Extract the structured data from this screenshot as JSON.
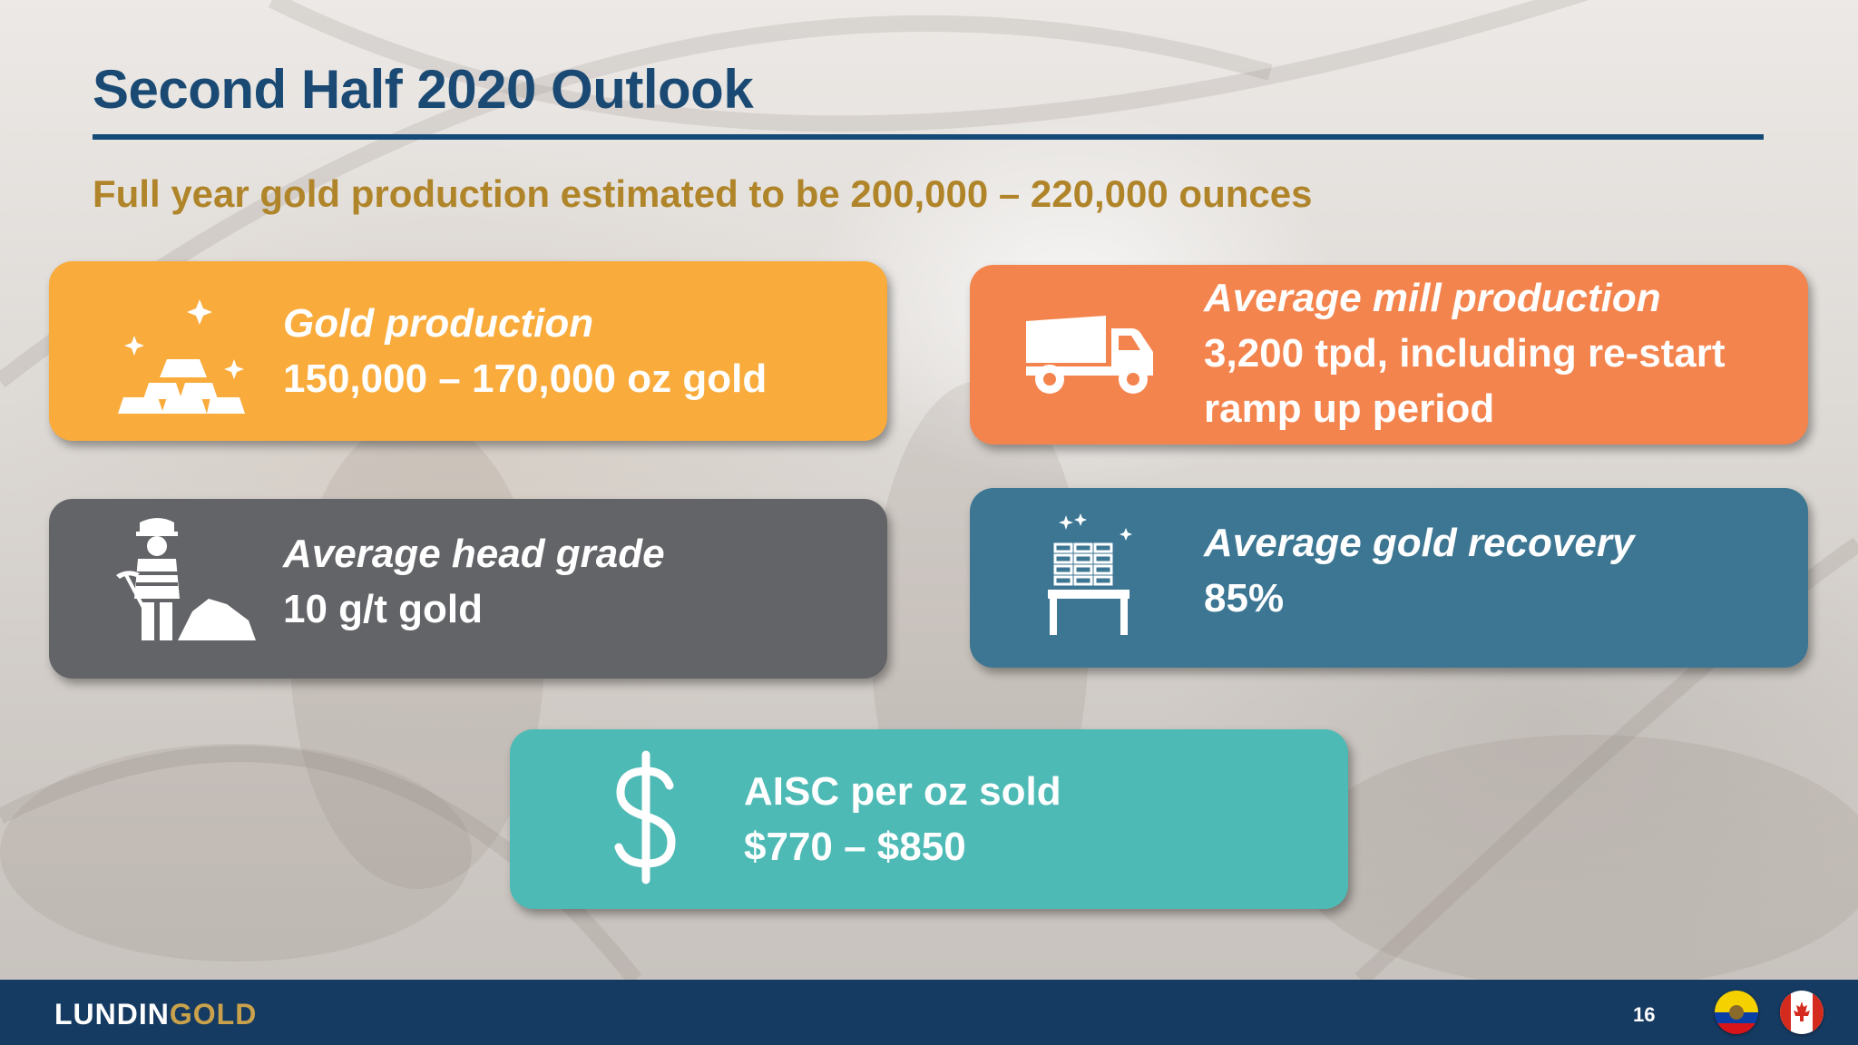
{
  "slide": {
    "title": "Second Half 2020 Outlook",
    "subtitle": "Full year gold production estimated to be 200,000 – 220,000 ounces",
    "page_number": "16"
  },
  "cards": {
    "gold": {
      "label": "Gold production",
      "value": "150,000 – 170,000 oz gold",
      "icon": "gold-bars-icon",
      "color": "#f9ab3c"
    },
    "mill": {
      "label": "Average mill production",
      "value_line1": "3,200 tpd, including re-start",
      "value_line2": "ramp up period",
      "icon": "dump-truck-icon",
      "color": "#f4844e"
    },
    "grade": {
      "label": "Average head grade",
      "value": "10 g/t gold",
      "icon": "miner-icon",
      "color": "#636467"
    },
    "recovery": {
      "label": "Average gold recovery",
      "value": "85%",
      "icon": "stacked-gold-icon",
      "color": "#3c7693"
    },
    "aisc": {
      "label": "AISC per oz sold",
      "value": "$770 – $850",
      "icon": "dollar-icon",
      "color": "#4dbab5"
    }
  },
  "footer": {
    "logo_part1": "LUNDIN",
    "logo_part2": "GOLD",
    "flags": [
      "ecuador-flag-icon",
      "canada-flag-icon"
    ],
    "color": "#163b62"
  }
}
